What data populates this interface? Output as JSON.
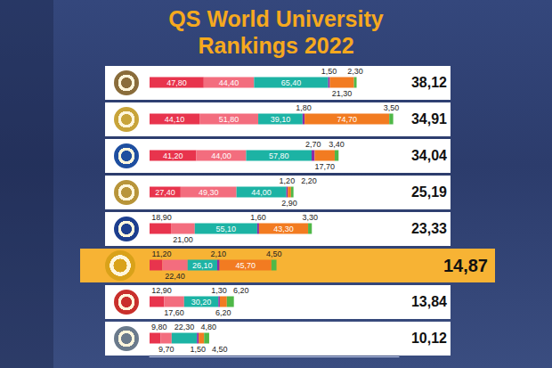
{
  "chart_data": {
    "type": "bar",
    "title": "QS World University Rankings 2022",
    "orientation": "horizontal",
    "stacked": true,
    "data_labels": true,
    "tick_labels": false,
    "grid": false,
    "categories": [
      null,
      null,
      null,
      null,
      null,
      null,
      null,
      null
    ],
    "xlim": [
      0,
      220
    ],
    "series": [
      {
        "color": "#e8344d",
        "values": [
          47.8,
          44.1,
          41.2,
          27.4,
          18.9,
          11.2,
          12.9,
          9.8
        ],
        "value_labels": [
          "47,80",
          "44,10",
          "41,20",
          "27,40",
          "18,90",
          "11,20",
          "12,90",
          "9,80"
        ]
      },
      {
        "color": "#f36d7e",
        "values": [
          44.4,
          51.8,
          44.0,
          49.3,
          21.0,
          22.4,
          17.6,
          9.7
        ],
        "value_labels": [
          "44,40",
          "51,80",
          "44,00",
          "49,30",
          "21,00",
          "22,40",
          "17,60",
          "9,70"
        ]
      },
      {
        "color": "#1cb3a4",
        "values": [
          65.4,
          39.1,
          57.8,
          44.0,
          55.1,
          26.1,
          30.2,
          22.3
        ],
        "value_labels": [
          "65,40",
          "39,10",
          "57,80",
          "44,00",
          "55,10",
          "26,10",
          "30,20",
          "22,30"
        ]
      },
      {
        "color": "#8e2ba6",
        "values": [
          1.5,
          1.8,
          2.7,
          1.2,
          1.6,
          2.1,
          1.3,
          1.5
        ],
        "value_labels": [
          "1,50",
          "1,80",
          "2,70",
          "1,20",
          "1,60",
          "2,10",
          "1,30",
          "1,50"
        ]
      },
      {
        "color": "#f27b21",
        "values": [
          21.3,
          74.7,
          17.7,
          2.9,
          43.3,
          45.7,
          6.2,
          4.8
        ],
        "value_labels": [
          "21,30",
          "74,70",
          "17,70",
          "2,90",
          "43,30",
          "45,70",
          "6,20",
          "4,80"
        ]
      },
      {
        "color": "#4fb848",
        "values": [
          2.3,
          3.5,
          3.4,
          2.2,
          3.3,
          4.5,
          6.2,
          4.5
        ],
        "value_labels": [
          "2,30",
          "3,50",
          "3,40",
          "2,20",
          "3,30",
          "4,50",
          "6,20",
          "4,50"
        ]
      }
    ],
    "totals": {
      "values": [
        38.12,
        34.91,
        34.04,
        25.19,
        23.33,
        14.87,
        13.84,
        10.12
      ],
      "value_labels": [
        "38,12",
        "34,91",
        "34,04",
        "25,19",
        "23,33",
        "14,87",
        "13,84",
        "10,12"
      ]
    }
  }
}
